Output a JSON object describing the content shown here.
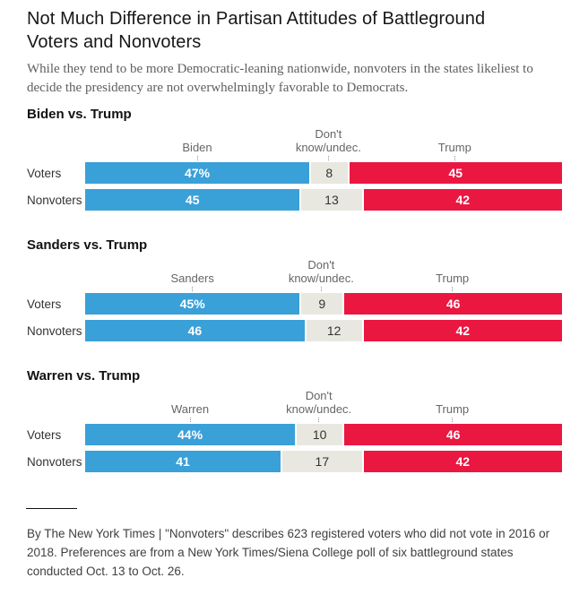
{
  "header": {
    "title_lines": [
      "Not Much Difference in Partisan Attitudes of Battleground",
      "Voters and Nonvoters"
    ],
    "subtitle_lines": [
      "While they tend to be more Democratic-leaning nationwide, nonvoters in the states likeliest to",
      "decide the presidency are not overwhelmingly favorable to Democrats."
    ]
  },
  "colors": {
    "democrat_blue": "#3aa0d8",
    "trump_red": "#ea1741",
    "undecided_gray": "#e8e8e0"
  },
  "chart_data": [
    {
      "type": "bar",
      "orientation": "horizontal",
      "stacked": true,
      "title": "Biden vs. Trump",
      "categories": [
        "Voters",
        "Nonvoters"
      ],
      "xlim": [
        0,
        100
      ],
      "series": [
        {
          "name": "Biden",
          "color": "#3aa0d8",
          "text_color": "#ffffff",
          "bold": true,
          "values": [
            47,
            45
          ],
          "labels": [
            "47%",
            "45"
          ]
        },
        {
          "name": "Don't know/undec.",
          "color": "#e8e8e0",
          "text_color": "#333333",
          "bold": false,
          "values": [
            8,
            13
          ],
          "labels": [
            "8",
            "13"
          ]
        },
        {
          "name": "Trump",
          "color": "#ea1741",
          "text_color": "#ffffff",
          "bold": true,
          "values": [
            45,
            42
          ],
          "labels": [
            "45",
            "42"
          ]
        }
      ]
    },
    {
      "type": "bar",
      "orientation": "horizontal",
      "stacked": true,
      "title": "Sanders vs. Trump",
      "categories": [
        "Voters",
        "Nonvoters"
      ],
      "xlim": [
        0,
        100
      ],
      "series": [
        {
          "name": "Sanders",
          "color": "#3aa0d8",
          "text_color": "#ffffff",
          "bold": true,
          "values": [
            45,
            46
          ],
          "labels": [
            "45%",
            "46"
          ]
        },
        {
          "name": "Don't know/undec.",
          "color": "#e8e8e0",
          "text_color": "#333333",
          "bold": false,
          "values": [
            9,
            12
          ],
          "labels": [
            "9",
            "12"
          ]
        },
        {
          "name": "Trump",
          "color": "#ea1741",
          "text_color": "#ffffff",
          "bold": true,
          "values": [
            46,
            42
          ],
          "labels": [
            "46",
            "42"
          ]
        }
      ]
    },
    {
      "type": "bar",
      "orientation": "horizontal",
      "stacked": true,
      "title": "Warren vs. Trump",
      "categories": [
        "Voters",
        "Nonvoters"
      ],
      "xlim": [
        0,
        100
      ],
      "series": [
        {
          "name": "Warren",
          "color": "#3aa0d8",
          "text_color": "#ffffff",
          "bold": true,
          "values": [
            44,
            41
          ],
          "labels": [
            "44%",
            "41"
          ]
        },
        {
          "name": "Don't know/undec.",
          "color": "#e8e8e0",
          "text_color": "#333333",
          "bold": false,
          "values": [
            10,
            17
          ],
          "labels": [
            "10",
            "17"
          ]
        },
        {
          "name": "Trump",
          "color": "#ea1741",
          "text_color": "#ffffff",
          "bold": true,
          "values": [
            46,
            42
          ],
          "labels": [
            "46",
            "42"
          ]
        }
      ]
    }
  ],
  "footer": {
    "note_lines": [
      "By The New York Times | \"Nonvoters\" describes 623 registered voters who did not vote in 2016 or",
      "2018. Preferences are from a New York Times/Siena College poll of six battleground states",
      "conducted Oct. 13 to Oct. 26."
    ]
  }
}
